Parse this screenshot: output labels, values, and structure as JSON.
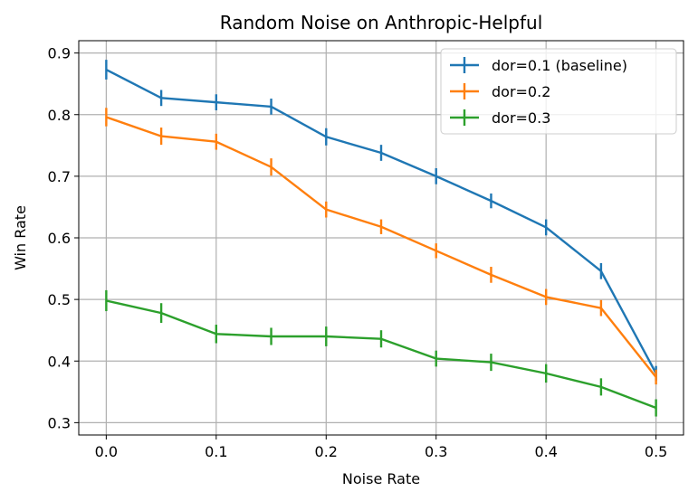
{
  "chart_data": {
    "type": "line",
    "title": "Random Noise on Anthropic-Helpful",
    "xlabel": "Noise Rate",
    "ylabel": "Win Rate",
    "xlim": [
      -0.025,
      0.525
    ],
    "ylim": [
      0.28,
      0.92
    ],
    "xticks": [
      0.0,
      0.1,
      0.2,
      0.3,
      0.4,
      0.5
    ],
    "xtick_labels": [
      "0.0",
      "0.1",
      "0.2",
      "0.3",
      "0.4",
      "0.5"
    ],
    "yticks": [
      0.3,
      0.4,
      0.5,
      0.6,
      0.7,
      0.8,
      0.9
    ],
    "ytick_labels": [
      "0.3",
      "0.4",
      "0.5",
      "0.6",
      "0.7",
      "0.8",
      "0.9"
    ],
    "grid": true,
    "legend_position": "top-right",
    "x": [
      0.0,
      0.05,
      0.1,
      0.15,
      0.2,
      0.25,
      0.3,
      0.35,
      0.4,
      0.45,
      0.5
    ],
    "series": [
      {
        "name": "dor=0.1 (baseline)",
        "color": "#1f77b4",
        "values": [
          0.873,
          0.827,
          0.82,
          0.813,
          0.764,
          0.738,
          0.7,
          0.66,
          0.617,
          0.546,
          0.38
        ],
        "errors": [
          0.016,
          0.013,
          0.013,
          0.013,
          0.014,
          0.013,
          0.013,
          0.012,
          0.013,
          0.013,
          0.012
        ]
      },
      {
        "name": "dor=0.2",
        "color": "#ff7f0e",
        "values": [
          0.796,
          0.765,
          0.756,
          0.715,
          0.646,
          0.618,
          0.579,
          0.54,
          0.504,
          0.486,
          0.374
        ],
        "errors": [
          0.015,
          0.014,
          0.013,
          0.014,
          0.013,
          0.012,
          0.012,
          0.013,
          0.013,
          0.013,
          0.012
        ]
      },
      {
        "name": "dor=0.3",
        "color": "#2ca02c",
        "values": [
          0.498,
          0.478,
          0.444,
          0.44,
          0.44,
          0.436,
          0.404,
          0.398,
          0.38,
          0.358,
          0.324
        ],
        "errors": [
          0.017,
          0.016,
          0.015,
          0.014,
          0.016,
          0.014,
          0.013,
          0.014,
          0.015,
          0.014,
          0.014
        ]
      }
    ]
  }
}
